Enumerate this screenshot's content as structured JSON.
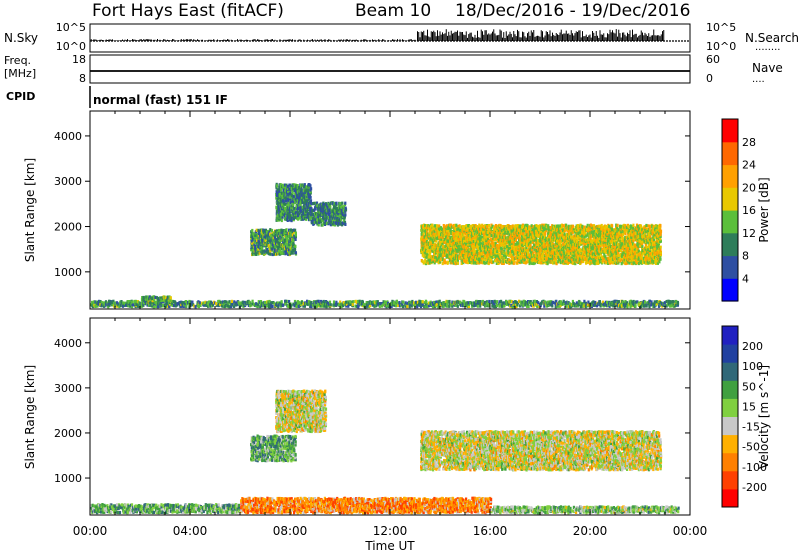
{
  "header": {
    "station": "Fort Hays East (fitACF)",
    "beam": "Beam 10",
    "dates": "18/Dec/2016 - 19/Dec/2016"
  },
  "strip_noise": {
    "left_label": "N.Sky",
    "right_label": "N.Search",
    "left_ticks": [
      "10^5",
      "10^0"
    ],
    "right_ticks": [
      "10^5",
      "10^0"
    ],
    "right_key": "........"
  },
  "strip_freq": {
    "left_label_top": "Freq.",
    "left_label_bottom": "[MHz]",
    "right_label": "Nave",
    "left_ticks": [
      "18",
      "8"
    ],
    "right_ticks": [
      "60",
      "0"
    ],
    "right_key": "...."
  },
  "cpid": {
    "label": "CPID",
    "text": "normal (fast) 151 IF"
  },
  "colors": {
    "power": [
      "#0000ff",
      "#2e4fa2",
      "#2e7d5a",
      "#5bbf3b",
      "#e8c800",
      "#ffa000",
      "#ff6800",
      "#ff0000"
    ],
    "velocity": [
      "#ff0000",
      "#ff4000",
      "#ff8000",
      "#ffb000",
      "#c8c8c8",
      "#80d040",
      "#40a040",
      "#306878",
      "#2040a0",
      "#2020c0"
    ]
  },
  "chart_data": [
    {
      "type": "heatmap",
      "panel": "power",
      "x_ticks": [
        "00:00",
        "04:00",
        "08:00",
        "12:00",
        "16:00",
        "20:00",
        "00:00"
      ],
      "x_range_hours": [
        0,
        24
      ],
      "ylabel": "Slant Range [km]",
      "y_ticks": [
        1000,
        2000,
        3000,
        4000
      ],
      "ylim": [
        180,
        4550
      ],
      "colorbar_label": "Power [dB]",
      "colorbar_ticks": [
        4,
        8,
        12,
        16,
        20,
        24,
        28
      ],
      "colorbar_range": [
        0,
        32
      ],
      "regions": [
        {
          "t0": 0.0,
          "t1": 23.5,
          "r0": 200,
          "r1": 320,
          "level": 0.35
        },
        {
          "t0": 2.0,
          "t1": 3.2,
          "r0": 330,
          "r1": 420,
          "level": 0.4
        },
        {
          "t0": 6.4,
          "t1": 8.2,
          "r0": 1350,
          "r1": 1900,
          "level": 0.35
        },
        {
          "t0": 7.4,
          "t1": 8.8,
          "r0": 2100,
          "r1": 2900,
          "level": 0.3
        },
        {
          "t0": 8.8,
          "t1": 10.2,
          "r0": 2000,
          "r1": 2500,
          "level": 0.3
        },
        {
          "t0": 13.2,
          "t1": 22.8,
          "r0": 1150,
          "r1": 2000,
          "level": 0.55
        }
      ]
    },
    {
      "type": "heatmap",
      "panel": "velocity",
      "x_ticks": [
        "00:00",
        "04:00",
        "08:00",
        "12:00",
        "16:00",
        "20:00",
        "00:00"
      ],
      "x_range_hours": [
        0,
        24
      ],
      "xlabel": "Time UT",
      "ylabel": "Slant Range [km]",
      "y_ticks": [
        1000,
        2000,
        3000,
        4000
      ],
      "ylim": [
        180,
        4550
      ],
      "colorbar_label": "Velocity [m s^-1]",
      "colorbar_ticks": [
        -200,
        -100,
        -50,
        -15,
        15,
        50,
        100,
        200
      ],
      "regions": [
        {
          "t0": 0.0,
          "t1": 6.0,
          "r0": 200,
          "r1": 380,
          "level": 0.62
        },
        {
          "t0": 6.0,
          "t1": 16.0,
          "r0": 200,
          "r1": 520,
          "level": 0.28
        },
        {
          "t0": 16.0,
          "t1": 23.5,
          "r0": 200,
          "r1": 330,
          "level": 0.55
        },
        {
          "t0": 6.4,
          "t1": 8.2,
          "r0": 1350,
          "r1": 1900,
          "level": 0.62
        },
        {
          "t0": 7.4,
          "t1": 9.4,
          "r0": 2000,
          "r1": 2900,
          "level": 0.45
        },
        {
          "t0": 13.2,
          "t1": 22.8,
          "r0": 1150,
          "r1": 2000,
          "level": 0.45
        }
      ]
    }
  ]
}
